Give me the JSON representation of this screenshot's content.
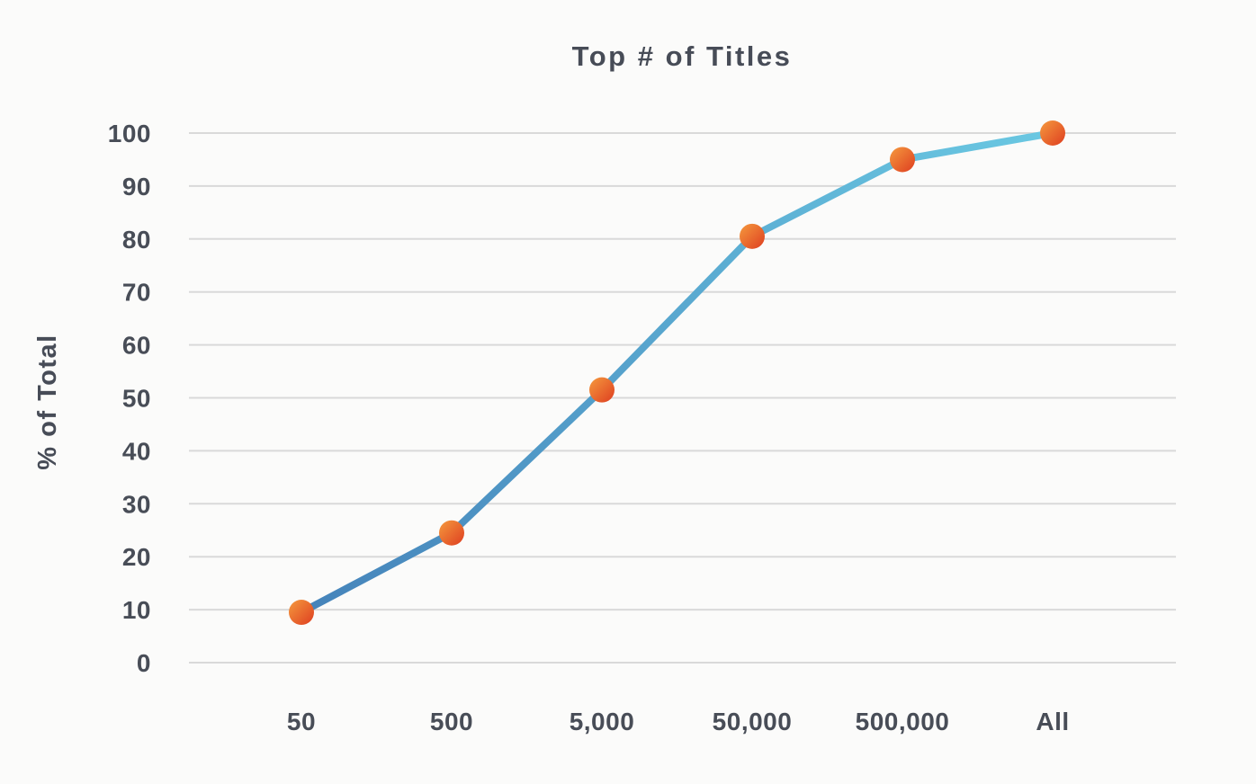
{
  "chart_data": {
    "type": "line",
    "title": "Top # of Titles",
    "xlabel": "",
    "ylabel": "% of Total",
    "categories": [
      "50",
      "500",
      "5,000",
      "50,000",
      "500,000",
      "All"
    ],
    "series": [
      {
        "name": "% of Total",
        "values": [
          9.5,
          24.5,
          51.5,
          80.5,
          95,
          100
        ]
      }
    ],
    "values": [
      9.5,
      24.5,
      51.5,
      80.5,
      95,
      100
    ],
    "ylim": [
      0,
      100
    ],
    "yticks": [
      0,
      10,
      20,
      30,
      40,
      50,
      60,
      70,
      80,
      90,
      100
    ],
    "grid": "horizontal",
    "legend_position": "none",
    "colors": {
      "line_gradient_start": "#4583ba",
      "line_gradient_end": "#6ac8e2",
      "marker_gradient_start": "#f59a3e",
      "marker_gradient_end": "#de3e20",
      "gridline": "#d9d9d9",
      "text": "#484d57",
      "background": "#fbfbfa"
    }
  }
}
